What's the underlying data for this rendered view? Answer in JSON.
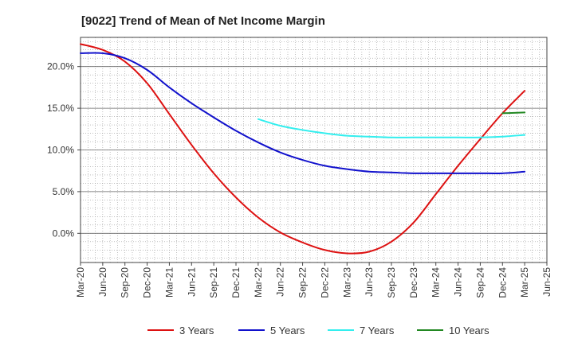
{
  "chart_data": {
    "type": "line",
    "title": "[9022]  Trend of Mean of Net Income Margin",
    "xlabel": "",
    "ylabel": "",
    "x_ticks": [
      "Mar-20",
      "Jun-20",
      "Sep-20",
      "Dec-20",
      "Mar-21",
      "Jun-21",
      "Sep-21",
      "Dec-21",
      "Mar-22",
      "Jun-22",
      "Sep-22",
      "Dec-22",
      "Mar-23",
      "Jun-23",
      "Sep-23",
      "Dec-23",
      "Mar-24",
      "Jun-24",
      "Sep-24",
      "Dec-24",
      "Mar-25",
      "Jun-25"
    ],
    "y_ticks": [
      {
        "value": 0,
        "label": "0.0%"
      },
      {
        "value": 5,
        "label": "5.0%"
      },
      {
        "value": 10,
        "label": "10.0%"
      },
      {
        "value": 15,
        "label": "15.0%"
      },
      {
        "value": 20,
        "label": "20.0%"
      }
    ],
    "ylim": [
      -3.5,
      23.5
    ],
    "grid": true,
    "legend_position": "bottom",
    "series": [
      {
        "name": "3 Years",
        "color": "#dd1111",
        "x": [
          "Mar-20",
          "Jun-20",
          "Sep-20",
          "Dec-20",
          "Mar-21",
          "Jun-21",
          "Sep-21",
          "Dec-21",
          "Mar-22",
          "Jun-22",
          "Sep-22",
          "Dec-22",
          "Mar-23",
          "Jun-23",
          "Sep-23",
          "Dec-23",
          "Mar-24",
          "Jun-24",
          "Sep-24",
          "Dec-24",
          "Mar-25"
        ],
        "values": [
          22.7,
          22.0,
          20.6,
          18.0,
          14.3,
          10.6,
          7.2,
          4.3,
          1.9,
          0.1,
          -1.1,
          -2.0,
          -2.4,
          -2.2,
          -1.0,
          1.3,
          4.7,
          8.1,
          11.3,
          14.4,
          17.1
        ]
      },
      {
        "name": "5 Years",
        "color": "#1111cc",
        "x": [
          "Mar-20",
          "Jun-20",
          "Sep-20",
          "Dec-20",
          "Mar-21",
          "Jun-21",
          "Sep-21",
          "Dec-21",
          "Mar-22",
          "Jun-22",
          "Sep-22",
          "Dec-22",
          "Mar-23",
          "Jun-23",
          "Sep-23",
          "Dec-23",
          "Mar-24",
          "Jun-24",
          "Sep-24",
          "Dec-24",
          "Mar-25"
        ],
        "values": [
          21.6,
          21.6,
          21.0,
          19.6,
          17.5,
          15.6,
          13.9,
          12.3,
          10.9,
          9.7,
          8.8,
          8.1,
          7.7,
          7.4,
          7.3,
          7.2,
          7.2,
          7.2,
          7.2,
          7.2,
          7.4
        ]
      },
      {
        "name": "7 Years",
        "color": "#33eeee",
        "x": [
          "Mar-22",
          "Jun-22",
          "Sep-22",
          "Dec-22",
          "Mar-23",
          "Jun-23",
          "Sep-23",
          "Dec-23",
          "Mar-24",
          "Jun-24",
          "Sep-24",
          "Dec-24",
          "Mar-25"
        ],
        "values": [
          13.7,
          12.9,
          12.4,
          12.0,
          11.7,
          11.6,
          11.5,
          11.5,
          11.5,
          11.5,
          11.5,
          11.6,
          11.8
        ]
      },
      {
        "name": "10 Years",
        "color": "#228822",
        "x": [
          "Dec-24",
          "Mar-25"
        ],
        "values": [
          14.4,
          14.5
        ]
      }
    ]
  }
}
